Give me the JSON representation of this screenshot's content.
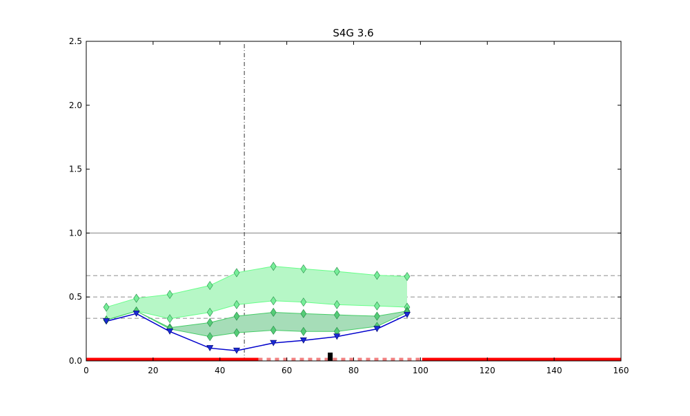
{
  "chart_data": {
    "type": "line",
    "title": "S4G 3.6",
    "xlabel": "",
    "ylabel": "",
    "xlim": [
      0,
      160
    ],
    "ylim": [
      0,
      2.5
    ],
    "x_ticks": [
      0,
      20,
      40,
      60,
      80,
      100,
      120,
      140,
      160
    ],
    "y_ticks": [
      0.0,
      0.5,
      1.0,
      1.5,
      2.0,
      2.5
    ],
    "x_tick_labels": [
      "0",
      "20",
      "40",
      "60",
      "80",
      "100",
      "120",
      "140",
      "160"
    ],
    "y_tick_labels": [
      "0.0",
      "0.5",
      "1.0",
      "1.5",
      "2.0",
      "2.5"
    ],
    "grid": false,
    "hlines": [
      {
        "y": 1.0,
        "style": "solid",
        "color": "#999999"
      },
      {
        "y": 0.667,
        "style": "dashed",
        "color": "#999999"
      },
      {
        "y": 0.5,
        "style": "dashed",
        "color": "#999999"
      },
      {
        "y": 0.333,
        "style": "dashed",
        "color": "#999999"
      }
    ],
    "vline": {
      "x": 47.3,
      "style": "dashdot",
      "color": "#333333"
    },
    "x": [
      6,
      15,
      25,
      37,
      45,
      56,
      65,
      75,
      87,
      96
    ],
    "series": [
      {
        "role": "outer-band-upper",
        "marker": "diamond",
        "color": "#66ff88",
        "values": [
          0.42,
          0.49,
          0.52,
          0.59,
          0.69,
          0.74,
          0.72,
          0.7,
          0.67,
          0.66
        ]
      },
      {
        "role": "outer-band-lower",
        "marker": "diamond",
        "color": "#66ff88",
        "values": [
          0.32,
          0.39,
          0.33,
          0.38,
          0.44,
          0.47,
          0.46,
          0.44,
          0.43,
          0.42
        ]
      },
      {
        "role": "inner-band-upper",
        "marker": "diamond",
        "color": "#44cc66",
        "values": [
          0.32,
          0.39,
          0.26,
          0.3,
          0.35,
          0.38,
          0.37,
          0.36,
          0.35,
          0.39
        ]
      },
      {
        "role": "inner-band-lower",
        "marker": "diamond",
        "color": "#44cc66",
        "values": [
          0.32,
          0.39,
          0.25,
          0.19,
          0.22,
          0.24,
          0.23,
          0.23,
          0.27,
          0.38
        ]
      },
      {
        "role": "main-line",
        "marker": "triangle-down",
        "color": "#0000cc",
        "values": [
          0.31,
          0.37,
          0.23,
          0.1,
          0.08,
          0.14,
          0.16,
          0.19,
          0.25,
          0.36
        ]
      }
    ],
    "bottom_bars": [
      {
        "x0": 0,
        "x1": 51.5,
        "style": "solid",
        "color": "#ff0000"
      },
      {
        "x0": 51.5,
        "x1": 100,
        "style": "dashed",
        "color": "#f08080"
      },
      {
        "x0": 100.5,
        "x1": 160,
        "style": "solid",
        "color": "#ff0000"
      }
    ],
    "marker_block": {
      "x": 73,
      "height": 0.065,
      "color": "#000000"
    }
  }
}
